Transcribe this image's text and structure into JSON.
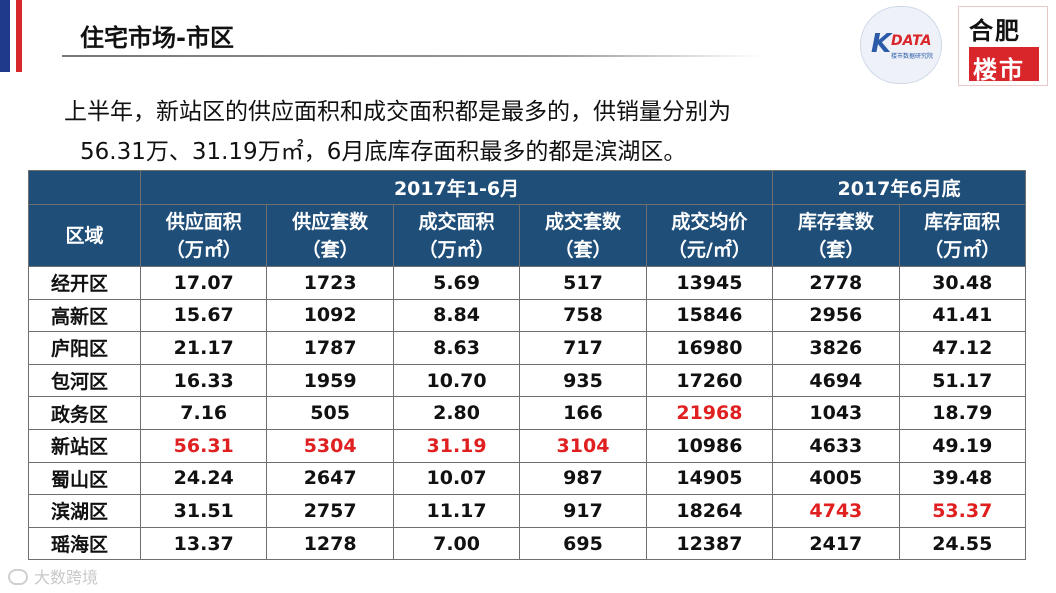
{
  "header": {
    "title": "住宅市场-市区",
    "logo_left_mark": "K",
    "logo_left_text": "DATA",
    "logo_left_sub": "楼市数据研究院",
    "logo_right_top": "合肥",
    "logo_right_bottom": "楼市"
  },
  "summary": {
    "line1": "上半年，新站区的供应面积和成交面积都是最多的，供销量分别为",
    "line2": "56.31万、31.19万㎡，6月底库存面积最多的都是滨湖区。"
  },
  "table": {
    "group_headers": [
      "2017年1-6月",
      "2017年6月底"
    ],
    "region_header": "区域",
    "columns": [
      {
        "l1": "供应面积",
        "l2": "（万㎡）"
      },
      {
        "l1": "供应套数",
        "l2": "（套）"
      },
      {
        "l1": "成交面积",
        "l2": "（万㎡）"
      },
      {
        "l1": "成交套数",
        "l2": "（套）"
      },
      {
        "l1": "成交均价",
        "l2": "（元/㎡）"
      },
      {
        "l1": "库存套数",
        "l2": "（套）"
      },
      {
        "l1": "库存面积",
        "l2": "（万㎡）"
      }
    ],
    "rows": [
      {
        "region": "经开区",
        "cells": [
          {
            "v": "17.07",
            "hl": false
          },
          {
            "v": "1723",
            "hl": false
          },
          {
            "v": "5.69",
            "hl": false
          },
          {
            "v": "517",
            "hl": false
          },
          {
            "v": "13945",
            "hl": false
          },
          {
            "v": "2778",
            "hl": false
          },
          {
            "v": "30.48",
            "hl": false
          }
        ]
      },
      {
        "region": "高新区",
        "cells": [
          {
            "v": "15.67",
            "hl": false
          },
          {
            "v": "1092",
            "hl": false
          },
          {
            "v": "8.84",
            "hl": false
          },
          {
            "v": "758",
            "hl": false
          },
          {
            "v": "15846",
            "hl": false
          },
          {
            "v": "2956",
            "hl": false
          },
          {
            "v": "41.41",
            "hl": false
          }
        ]
      },
      {
        "region": "庐阳区",
        "cells": [
          {
            "v": "21.17",
            "hl": false
          },
          {
            "v": "1787",
            "hl": false
          },
          {
            "v": "8.63",
            "hl": false
          },
          {
            "v": "717",
            "hl": false
          },
          {
            "v": "16980",
            "hl": false
          },
          {
            "v": "3826",
            "hl": false
          },
          {
            "v": "47.12",
            "hl": false
          }
        ]
      },
      {
        "region": "包河区",
        "cells": [
          {
            "v": "16.33",
            "hl": false
          },
          {
            "v": "1959",
            "hl": false
          },
          {
            "v": "10.70",
            "hl": false
          },
          {
            "v": "935",
            "hl": false
          },
          {
            "v": "17260",
            "hl": false
          },
          {
            "v": "4694",
            "hl": false
          },
          {
            "v": "51.17",
            "hl": false
          }
        ]
      },
      {
        "region": "政务区",
        "cells": [
          {
            "v": "7.16",
            "hl": false
          },
          {
            "v": "505",
            "hl": false
          },
          {
            "v": "2.80",
            "hl": false
          },
          {
            "v": "166",
            "hl": false
          },
          {
            "v": "21968",
            "hl": true
          },
          {
            "v": "1043",
            "hl": false
          },
          {
            "v": "18.79",
            "hl": false
          }
        ]
      },
      {
        "region": "新站区",
        "cells": [
          {
            "v": "56.31",
            "hl": true
          },
          {
            "v": "5304",
            "hl": true
          },
          {
            "v": "31.19",
            "hl": true
          },
          {
            "v": "3104",
            "hl": true
          },
          {
            "v": "10986",
            "hl": false
          },
          {
            "v": "4633",
            "hl": false
          },
          {
            "v": "49.19",
            "hl": false
          }
        ]
      },
      {
        "region": "蜀山区",
        "cells": [
          {
            "v": "24.24",
            "hl": false
          },
          {
            "v": "2647",
            "hl": false
          },
          {
            "v": "10.07",
            "hl": false
          },
          {
            "v": "987",
            "hl": false
          },
          {
            "v": "14905",
            "hl": false
          },
          {
            "v": "4005",
            "hl": false
          },
          {
            "v": "39.48",
            "hl": false
          }
        ]
      },
      {
        "region": "滨湖区",
        "cells": [
          {
            "v": "31.51",
            "hl": false
          },
          {
            "v": "2757",
            "hl": false
          },
          {
            "v": "11.17",
            "hl": false
          },
          {
            "v": "917",
            "hl": false
          },
          {
            "v": "18264",
            "hl": false
          },
          {
            "v": "4743",
            "hl": true
          },
          {
            "v": "53.37",
            "hl": true
          }
        ]
      },
      {
        "region": "瑶海区",
        "cells": [
          {
            "v": "13.37",
            "hl": false
          },
          {
            "v": "1278",
            "hl": false
          },
          {
            "v": "7.00",
            "hl": false
          },
          {
            "v": "695",
            "hl": false
          },
          {
            "v": "12387",
            "hl": false
          },
          {
            "v": "2417",
            "hl": false
          },
          {
            "v": "24.55",
            "hl": false
          }
        ]
      }
    ]
  },
  "watermark": "大数跨境",
  "colors": {
    "header_bg": "#1f4e79",
    "highlight": "#e02020",
    "accent_blue": "#1f3a8a",
    "accent_red": "#d9262b"
  }
}
